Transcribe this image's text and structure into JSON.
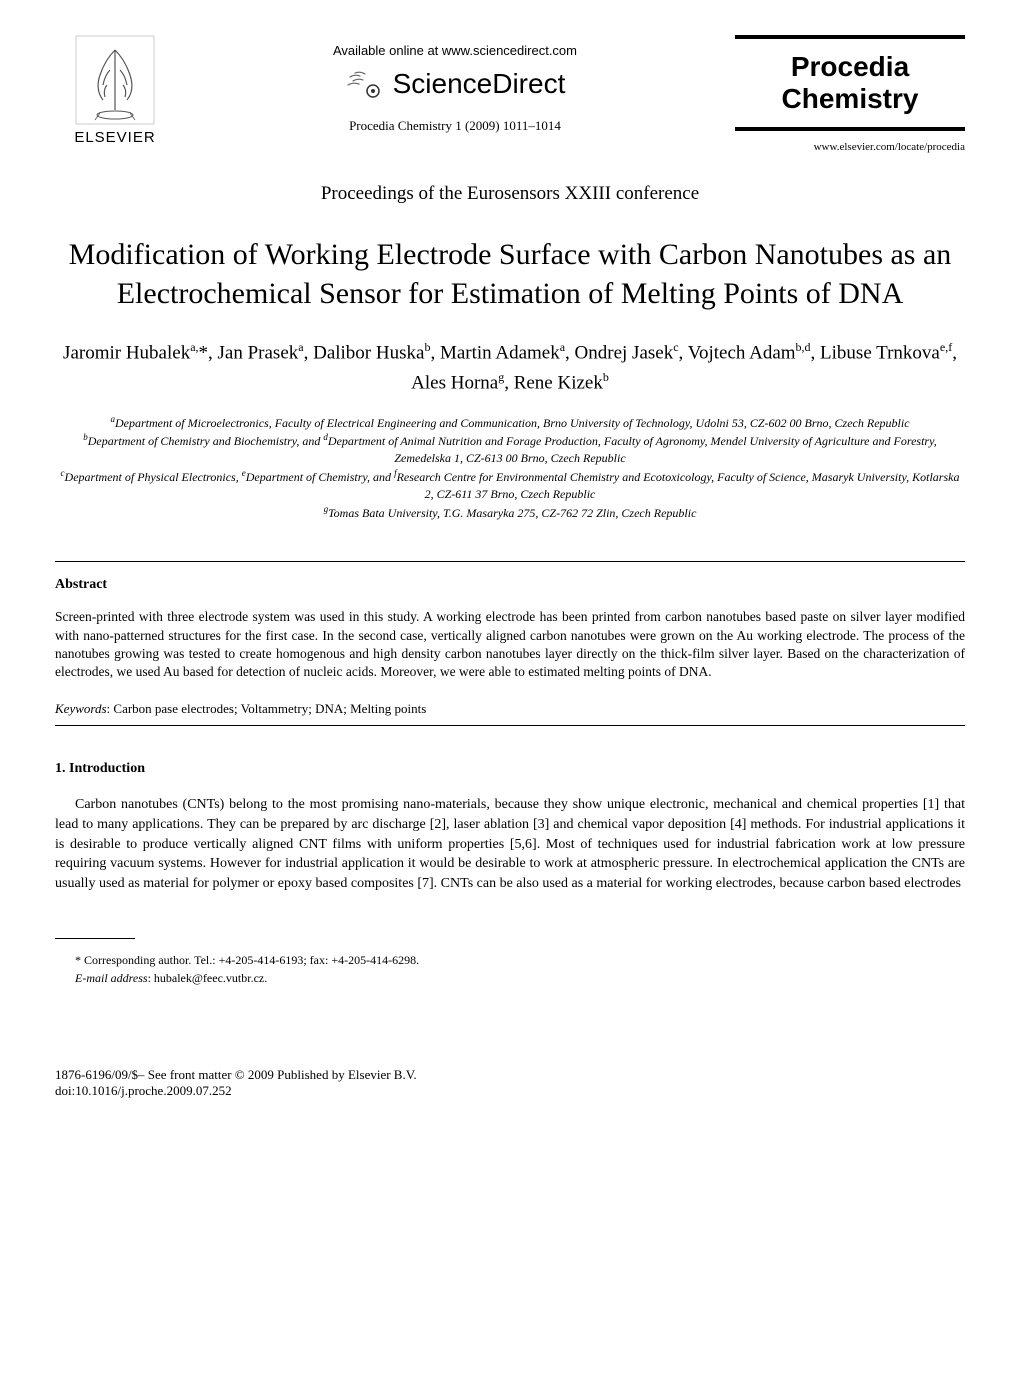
{
  "header": {
    "publisher_label": "ELSEVIER",
    "available_text": "Available online at www.sciencedirect.com",
    "sciencedirect_text": "ScienceDirect",
    "citation": "Procedia Chemistry 1 (2009) 1011–1014",
    "journal_line1": "Procedia",
    "journal_line2": "Chemistry",
    "journal_url": "www.elsevier.com/locate/procedia"
  },
  "conference": "Proceedings of the Eurosensors XXIII conference",
  "title": "Modification of Working Electrode Surface with Carbon Nanotubes as an Electrochemical Sensor for Estimation of Melting Points of DNA",
  "authors_html": "Jaromir Hubalek<sup>a,</sup>*, Jan Prasek<sup>a</sup>, Dalibor Huska<sup>b</sup>, Martin Adamek<sup>a</sup>, Ondrej Jasek<sup>c</sup>, Vojtech Adam<sup>b,d</sup>, Libuse Trnkova<sup>e,f</sup>, Ales Horna<sup>g</sup>, Rene Kizek<sup>b</sup>",
  "affiliations_html": "<sup>a</sup>Department of Microelectronics, Faculty of Electrical Engineering and Communication, Brno University of Technology, Udolni 53, CZ-602 00 Brno, Czech Republic<br><sup>b</sup>Department of Chemistry and Biochemistry, and <sup>d</sup>Department of Animal Nutrition and Forage Production, Faculty of Agronomy, Mendel University of Agriculture and Forestry, Zemedelska 1, CZ-613 00 Brno, Czech Republic<br><sup>c</sup>Department of Physical Electronics, <sup>e</sup>Department of Chemistry, and <sup>f</sup>Research Centre for Environmental Chemistry and Ecotoxicology, Faculty of Science, Masaryk University, Kotlarska 2, CZ-611 37 Brno, Czech Republic<br><sup>g</sup>Tomas Bata University, T.G. Masaryka 275, CZ-762 72 Zlin, Czech Republic",
  "abstract": {
    "heading": "Abstract",
    "text": "Screen-printed with three electrode system was used in this study. A working electrode has been printed from carbon nanotubes based paste on silver layer modified with nano-patterned structures for the first case. In the second case, vertically aligned carbon nanotubes were grown on the Au working electrode. The process of the nanotubes growing was tested to create homogenous and high density carbon nanotubes layer directly on the thick-film silver layer. Based on the characterization of electrodes, we used Au based for detection of nucleic acids. Moreover, we were able to estimated melting points of DNA."
  },
  "keywords": {
    "label": "Keywords",
    "text": ": Carbon pase electrodes; Voltammetry; DNA; Melting points"
  },
  "introduction": {
    "heading": "1. Introduction",
    "text": "Carbon nanotubes (CNTs) belong to the most promising nano-materials, because they show unique electronic, mechanical and chemical properties [1] that lead to many applications. They can be prepared by arc discharge [2], laser ablation [3] and chemical vapor deposition [4] methods. For industrial applications it is desirable to produce vertically aligned CNT films with uniform properties [5,6]. Most of techniques used for industrial fabrication work at low pressure requiring vacuum systems. However for industrial application it would be desirable to work at atmospheric pressure. In electrochemical application the CNTs are usually used as material for polymer or epoxy based composites [7]. CNTs can be also used as a material for working electrodes, because carbon based electrodes"
  },
  "footnote": {
    "corresponding": "* Corresponding author. Tel.: +4-205-414-6193; fax: +4-205-414-6298.",
    "email_label": "E-mail address",
    "email": ": hubalek@feec.vutbr.cz."
  },
  "footer": {
    "line1": "1876-6196/09/$– See front matter © 2009 Published by Elsevier B.V.",
    "line2": "doi:10.1016/j.proche.2009.07.252"
  }
}
